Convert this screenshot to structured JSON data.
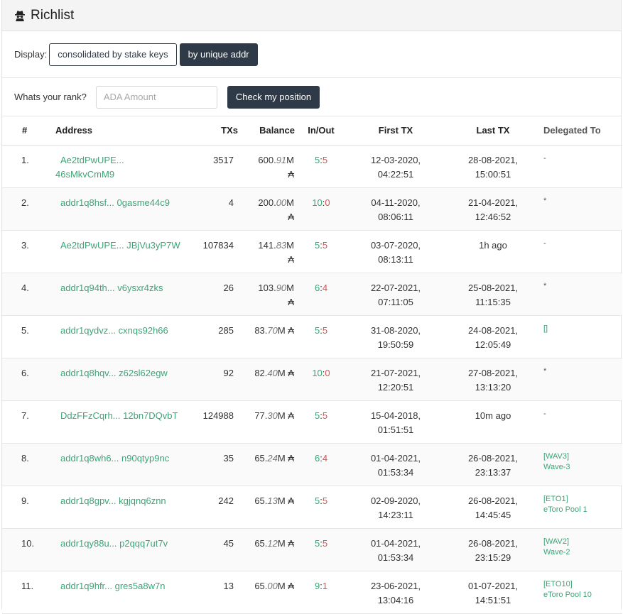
{
  "header": {
    "title": "Richlist",
    "icon": "spy-icon"
  },
  "display": {
    "label": "Display:",
    "option_consolidated": "consolidated by stake keys",
    "option_unique": "by unique addr"
  },
  "rank": {
    "label": "Whats your rank?",
    "placeholder": "ADA Amount",
    "button": "Check my position"
  },
  "columns": {
    "num": "#",
    "address": "Address",
    "txs": "TXs",
    "balance": "Balance",
    "inout": "In/Out",
    "first": "First TX",
    "last": "Last TX",
    "delegated": "Delegated To"
  },
  "rows": [
    {
      "num": "1.",
      "addr1": "Ae2tdPwUPE...",
      "addr2": "46sMkvCmM9",
      "txs": "3517",
      "bal_int": "600.",
      "bal_dec": "91",
      "bal_unit": "M",
      "ada": "₳",
      "in": "5",
      "out": "5",
      "first1": "12-03-2020,",
      "first2": "04:22:51",
      "last1": "28-08-2021,",
      "last2": "15:00:51",
      "del1": "-",
      "del2": ""
    },
    {
      "num": "2.",
      "addr1": "addr1q8hsf... 0gasme44c9",
      "addr2": "",
      "txs": "4",
      "bal_int": "200.",
      "bal_dec": "00",
      "bal_unit": "M",
      "ada": "₳",
      "in": "10",
      "out": "0",
      "first1": "04-11-2020,",
      "first2": "08:06:11",
      "last1": "21-04-2021,",
      "last2": "12:46:52",
      "del1": "*",
      "del2": ""
    },
    {
      "num": "3.",
      "addr1": "Ae2tdPwUPE... JBjVu3yP7W",
      "addr2": "",
      "txs": "107834",
      "bal_int": "141.",
      "bal_dec": "83",
      "bal_unit": "M",
      "ada": "₳",
      "in": "5",
      "out": "5",
      "first1": "03-07-2020,",
      "first2": "08:13:11",
      "last1": "1h ago",
      "last2": "",
      "del1": "-",
      "del2": ""
    },
    {
      "num": "4.",
      "addr1": "addr1q94th... v6ysxr4zks",
      "addr2": "",
      "txs": "26",
      "bal_int": "103.",
      "bal_dec": "90",
      "bal_unit": "M",
      "ada": "₳",
      "in": "6",
      "out": "4",
      "first1": "22-07-2021,",
      "first2": "07:11:05",
      "last1": "25-08-2021,",
      "last2": "11:15:35",
      "del1": "*",
      "del2": ""
    },
    {
      "num": "5.",
      "addr1": "addr1qydvz... cxnqs92h66",
      "addr2": "",
      "txs": "285",
      "bal_int": "83.",
      "bal_dec": "70",
      "bal_unit": "M ₳",
      "ada": "",
      "in": "5",
      "out": "5",
      "first1": "31-08-2020,",
      "first2": "19:50:59",
      "last1": "24-08-2021,",
      "last2": "12:05:49",
      "del1": "[]",
      "del2": ""
    },
    {
      "num": "6.",
      "addr1": "addr1q8hqv... z62sl62egw",
      "addr2": "",
      "txs": "92",
      "bal_int": "82.",
      "bal_dec": "40",
      "bal_unit": "M ₳",
      "ada": "",
      "in": "10",
      "out": "0",
      "first1": "21-07-2021,",
      "first2": "12:20:51",
      "last1": "27-08-2021,",
      "last2": "13:13:20",
      "del1": "*",
      "del2": ""
    },
    {
      "num": "7.",
      "addr1": "DdzFFzCqrh... 12bn7DQvbT",
      "addr2": "",
      "txs": "124988",
      "bal_int": "77.",
      "bal_dec": "30",
      "bal_unit": "M ₳",
      "ada": "",
      "in": "5",
      "out": "5",
      "first1": "15-04-2018,",
      "first2": "01:51:51",
      "last1": "10m ago",
      "last2": "",
      "del1": "-",
      "del2": ""
    },
    {
      "num": "8.",
      "addr1": "addr1q8wh6... n90qtyp9nc",
      "addr2": "",
      "txs": "35",
      "bal_int": "65.",
      "bal_dec": "24",
      "bal_unit": "M ₳",
      "ada": "",
      "in": "6",
      "out": "4",
      "first1": "01-04-2021,",
      "first2": "01:53:34",
      "last1": "26-08-2021,",
      "last2": "23:13:37",
      "del1": "[WAV3]",
      "del2": "Wave-3"
    },
    {
      "num": "9.",
      "addr1": "addr1q8gpv... kgjqnq6znn",
      "addr2": "",
      "txs": "242",
      "bal_int": "65.",
      "bal_dec": "13",
      "bal_unit": "M ₳",
      "ada": "",
      "in": "5",
      "out": "5",
      "first1": "02-09-2020,",
      "first2": "14:23:11",
      "last1": "26-08-2021,",
      "last2": "14:45:45",
      "del1": "[ETO1]",
      "del2": "eToro Pool 1"
    },
    {
      "num": "10.",
      "addr1": "addr1qy88u... p2qqq7ut7v",
      "addr2": "",
      "txs": "45",
      "bal_int": "65.",
      "bal_dec": "12",
      "bal_unit": "M ₳",
      "ada": "",
      "in": "5",
      "out": "5",
      "first1": "01-04-2021,",
      "first2": "01:53:34",
      "last1": "26-08-2021,",
      "last2": "23:15:29",
      "del1": "[WAV2]",
      "del2": "Wave-2"
    },
    {
      "num": "11.",
      "addr1": "addr1q9hfr... gres5a8w7n",
      "addr2": "",
      "txs": "13",
      "bal_int": "65.",
      "bal_dec": "00",
      "bal_unit": "M ₳",
      "ada": "",
      "in": "9",
      "out": "1",
      "first1": "23-06-2021,",
      "first2": "13:04:16",
      "last1": "01-07-2021,",
      "last2": "14:51:51",
      "del1": "[ETO10]",
      "del2": "eToro Pool 10"
    }
  ],
  "colors": {
    "green": "#3aa676",
    "red": "#d9534f",
    "dark_button": "#2e3a48"
  }
}
